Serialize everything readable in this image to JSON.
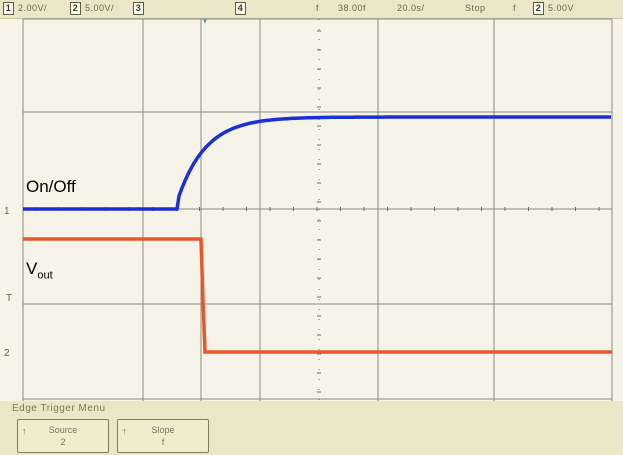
{
  "status_bar": {
    "ch1": {
      "num": "1",
      "scale": "2.00V/"
    },
    "ch2": {
      "num": "2",
      "scale": "5.00V/"
    },
    "ch3": {
      "num": "3"
    },
    "ch4": {
      "num": "4"
    },
    "trigger_symbol": "f",
    "time_offset": "38.00f",
    "time_scale": "20.0s/",
    "mode": "Stop",
    "trigger_slope": "f",
    "trig_ch": "2",
    "trig_level": "5.00V"
  },
  "channel_markers": {
    "ch1": "1",
    "ch2": "2",
    "trigger": "T"
  },
  "trace_labels": {
    "on_off": "On/Off",
    "vout_main": "V",
    "vout_sub": "out"
  },
  "menu": {
    "title": "Edge Trigger Menu",
    "softkeys": [
      {
        "name": "Source",
        "value": "2"
      },
      {
        "name": "Slope",
        "value": "f"
      }
    ]
  },
  "colors": {
    "grid": "#8a8a80",
    "trace_on_off": "#1a2fd4",
    "trace_vout": "#e8562a",
    "background": "#f6f4e9",
    "status_bar": "#e9e6c9"
  }
}
